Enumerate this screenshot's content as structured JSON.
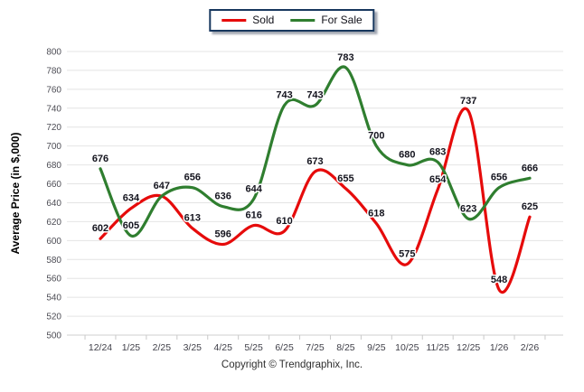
{
  "legend": {
    "items": [
      {
        "label": "Sold",
        "color": "#e60b0b"
      },
      {
        "label": "For Sale",
        "color": "#2f7e2f"
      }
    ]
  },
  "footer": {
    "copyright": "Copyright © Trendgraphix, Inc."
  },
  "colors": {
    "sold_line": "#e60b0b",
    "for_sale_line": "#2f7e2f",
    "gridline": "#e4e4e4",
    "baseline": "#cfcfcf",
    "tick_mark": "#c9c9c9",
    "tick_text": "#4d4d55",
    "data_label_text": "#14141e",
    "legend_border": "#17375e",
    "background": "#ffffff"
  },
  "chart_data": {
    "type": "line",
    "categories": [
      "12/24",
      "1/25",
      "2/25",
      "3/25",
      "4/25",
      "5/25",
      "6/25",
      "7/25",
      "8/25",
      "9/25",
      "10/25",
      "11/25",
      "12/25",
      "1/26",
      "2/26"
    ],
    "series": [
      {
        "name": "Sold",
        "color": "#e60b0b",
        "values": [
          602,
          634,
          647,
          613,
          596,
          616,
          610,
          673,
          655,
          618,
          575,
          654,
          737,
          548,
          625
        ]
      },
      {
        "name": "For Sale",
        "color": "#2f7e2f",
        "values": [
          676,
          605,
          647,
          656,
          636,
          644,
          743,
          743,
          783,
          700,
          680,
          683,
          623,
          656,
          666
        ]
      }
    ],
    "title": "",
    "xlabel": "",
    "ylabel": "Average Price (in $,000)",
    "ylim": [
      500,
      800
    ],
    "ytick_step": 20,
    "grid": "horizontal-only",
    "legend_position": "top-center",
    "smoothing": "spline"
  }
}
